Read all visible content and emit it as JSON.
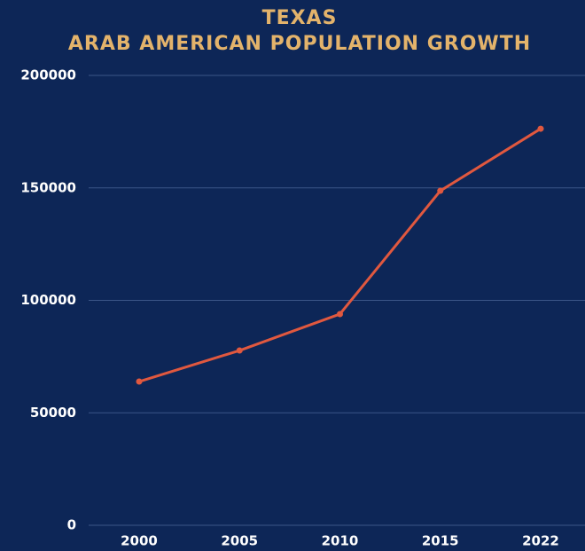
{
  "chart_data": {
    "type": "line",
    "title": "TEXAS",
    "subtitle": "ARAB AMERICAN POPULATION GROWTH",
    "categories": [
      "2000",
      "2005",
      "2010",
      "2015",
      "2022"
    ],
    "series": [
      {
        "name": "Arab American population",
        "color": "#e0583f",
        "values": [
          63900,
          77700,
          93900,
          148700,
          176300
        ]
      }
    ],
    "ylim": [
      0,
      200000
    ],
    "yticks": [
      0,
      50000,
      100000,
      150000,
      200000
    ],
    "grid": true
  }
}
